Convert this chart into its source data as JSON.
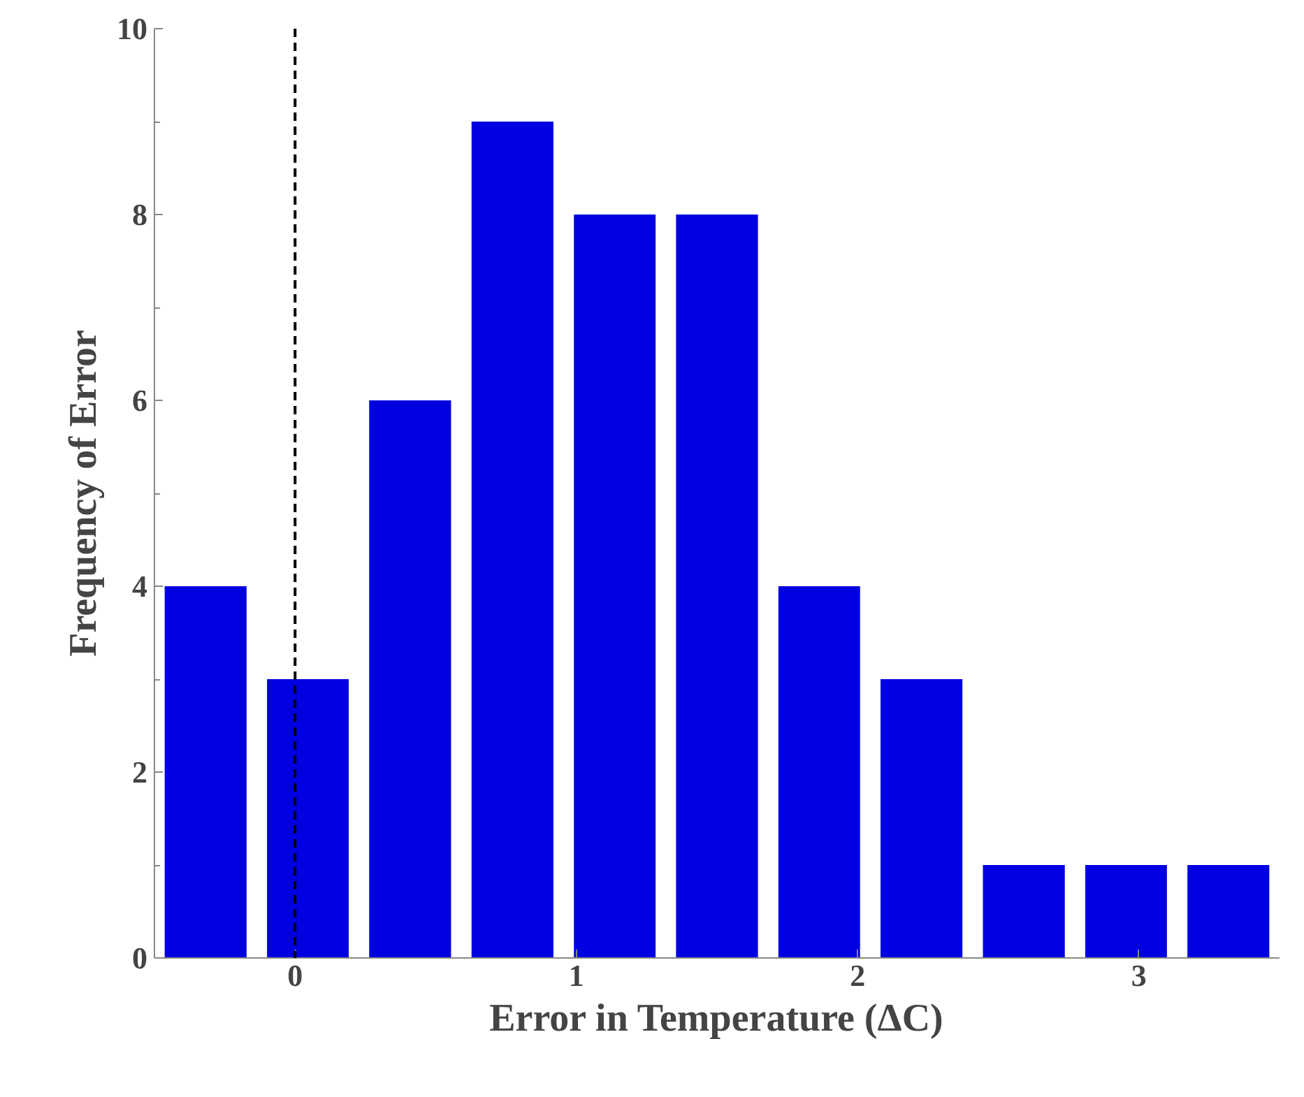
{
  "chart_data": {
    "type": "histogram",
    "xlabel": "Error in Temperature (ΔC)",
    "ylabel": "Frequency of Error",
    "bins": [
      -0.5,
      -0.136,
      0.227,
      0.591,
      0.955,
      1.318,
      1.682,
      2.045,
      2.409,
      2.773,
      3.136,
      3.5
    ],
    "values": [
      4,
      3,
      6,
      9,
      8,
      8,
      4,
      3,
      1,
      1,
      1
    ],
    "color": "#0000e0",
    "xlim": [
      -0.5,
      3.5
    ],
    "xticks": [
      0,
      1,
      2,
      3
    ],
    "ylim": [
      0,
      10
    ],
    "yticks": [
      0,
      2,
      4,
      6,
      8,
      10
    ],
    "grid": false,
    "ref_lines": [
      {
        "axis": "x",
        "value": 0,
        "color": "#000000",
        "line_style": "dashed"
      }
    ]
  }
}
